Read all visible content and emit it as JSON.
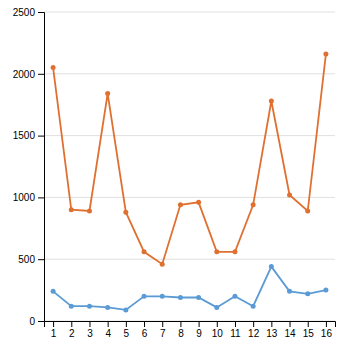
{
  "chart_data": {
    "type": "line",
    "x": [
      1,
      2,
      3,
      4,
      5,
      6,
      7,
      8,
      9,
      10,
      11,
      12,
      13,
      14,
      15,
      16
    ],
    "series": [
      {
        "color": "#E07030",
        "values": [
          2050,
          900,
          890,
          1840,
          880,
          560,
          460,
          940,
          960,
          560,
          560,
          940,
          1780,
          1020,
          890,
          2160
        ]
      },
      {
        "color": "#5B9BD5",
        "values": [
          240,
          120,
          120,
          110,
          90,
          200,
          200,
          190,
          190,
          110,
          200,
          120,
          440,
          240,
          220,
          250
        ]
      }
    ],
    "marker": "circle",
    "xlim": [
      0.5,
      16.5
    ],
    "xticks": [
      1,
      2,
      3,
      4,
      5,
      6,
      7,
      8,
      9,
      10,
      11,
      12,
      13,
      14,
      15,
      16
    ],
    "ylim": [
      0,
      2500
    ],
    "yticks": [
      0,
      500,
      1000,
      1500,
      2000,
      2500
    ],
    "grid": true
  }
}
